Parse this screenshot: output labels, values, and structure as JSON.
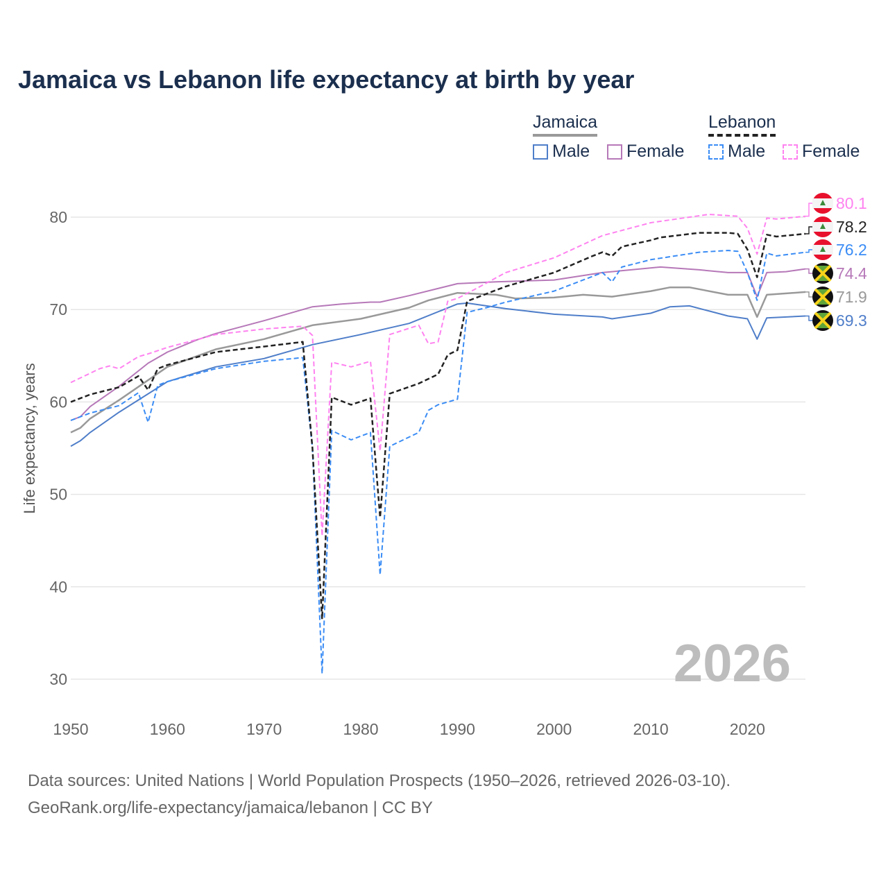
{
  "title": "Jamaica vs Lebanon life expectancy at birth by year",
  "legend": {
    "groups": [
      {
        "label": "Jamaica",
        "color": "#999999",
        "dashed": false
      },
      {
        "label": "Lebanon",
        "color": "#222222",
        "dashed": true
      }
    ],
    "items": [
      {
        "label": "Male",
        "color": "#4f7ec9",
        "dashed": false
      },
      {
        "label": "Female",
        "color": "#b678b8",
        "dashed": false
      },
      {
        "label": "Male",
        "color": "#3a8cf5",
        "dashed": true
      },
      {
        "label": "Female",
        "color": "#ff82f0",
        "dashed": true
      }
    ]
  },
  "watermark_year": "2026",
  "footer": {
    "line1": "Data sources: United Nations | World Population Prospects (1950–2026, retrieved 2026-03-10).",
    "line2": "GeoRank.org/life-expectancy/jamaica/lebanon | CC BY"
  },
  "chart_data": {
    "type": "line",
    "title": "Jamaica vs Lebanon life expectancy at birth by year",
    "xlabel": "",
    "ylabel": "Life expectancy, years",
    "xlim": [
      1950,
      2026
    ],
    "ylim": [
      27,
      85
    ],
    "xticks": [
      1950,
      1960,
      1970,
      1980,
      1990,
      2000,
      2010,
      2020
    ],
    "yticks": [
      30,
      40,
      50,
      60,
      70,
      80
    ],
    "grid": true,
    "series": [
      {
        "name": "Lebanon Female",
        "country": "lebanon",
        "color": "#ff82f0",
        "dashed": true,
        "width": 2,
        "end_label": "80.1",
        "points": [
          [
            1950,
            62.1
          ],
          [
            1953,
            63.6
          ],
          [
            1954,
            63.9
          ],
          [
            1955,
            63.6
          ],
          [
            1957,
            64.9
          ],
          [
            1958,
            65.2
          ],
          [
            1960,
            65.9
          ],
          [
            1965,
            67.3
          ],
          [
            1970,
            67.9
          ],
          [
            1974,
            68.2
          ],
          [
            1975,
            67.2
          ],
          [
            1976,
            45.5
          ],
          [
            1977,
            64.3
          ],
          [
            1979,
            63.8
          ],
          [
            1981,
            64.4
          ],
          [
            1982,
            54.7
          ],
          [
            1983,
            67.3
          ],
          [
            1986,
            68.3
          ],
          [
            1987,
            66.3
          ],
          [
            1988,
            66.5
          ],
          [
            1989,
            70.9
          ],
          [
            1990,
            71.2
          ],
          [
            1992,
            72.3
          ],
          [
            1995,
            74.0
          ],
          [
            2000,
            75.6
          ],
          [
            2005,
            78.0
          ],
          [
            2010,
            79.4
          ],
          [
            2016,
            80.3
          ],
          [
            2019,
            80.1
          ],
          [
            2020,
            78.8
          ],
          [
            2021,
            76.0
          ],
          [
            2022,
            79.9
          ],
          [
            2023,
            79.8
          ],
          [
            2026,
            80.1
          ]
        ]
      },
      {
        "name": "Lebanon",
        "country": "lebanon",
        "color": "#222222",
        "dashed": true,
        "width": 2.5,
        "end_label": "78.2",
        "points": [
          [
            1950,
            60.0
          ],
          [
            1952,
            60.8
          ],
          [
            1955,
            61.6
          ],
          [
            1957,
            62.8
          ],
          [
            1958,
            61.3
          ],
          [
            1959,
            63.6
          ],
          [
            1960,
            64.0
          ],
          [
            1965,
            65.4
          ],
          [
            1970,
            66.0
          ],
          [
            1974,
            66.5
          ],
          [
            1975,
            55.0
          ],
          [
            1976,
            36.5
          ],
          [
            1977,
            60.5
          ],
          [
            1979,
            59.7
          ],
          [
            1981,
            60.4
          ],
          [
            1982,
            47.5
          ],
          [
            1983,
            60.9
          ],
          [
            1986,
            62.0
          ],
          [
            1988,
            63.0
          ],
          [
            1989,
            65.1
          ],
          [
            1990,
            65.6
          ],
          [
            1991,
            70.9
          ],
          [
            1995,
            72.5
          ],
          [
            2000,
            74.0
          ],
          [
            2004,
            75.8
          ],
          [
            2005,
            76.2
          ],
          [
            2006,
            75.8
          ],
          [
            2007,
            76.8
          ],
          [
            2010,
            77.5
          ],
          [
            2011,
            77.8
          ],
          [
            2015,
            78.3
          ],
          [
            2018,
            78.3
          ],
          [
            2019,
            78.2
          ],
          [
            2020,
            76.5
          ],
          [
            2021,
            73.5
          ],
          [
            2022,
            78.1
          ],
          [
            2023,
            77.9
          ],
          [
            2026,
            78.2
          ]
        ]
      },
      {
        "name": "Lebanon Male",
        "country": "lebanon",
        "color": "#3a8cf5",
        "dashed": true,
        "width": 2,
        "end_label": "76.2",
        "points": [
          [
            1950,
            58.0
          ],
          [
            1952,
            58.8
          ],
          [
            1955,
            59.6
          ],
          [
            1957,
            61.0
          ],
          [
            1958,
            57.8
          ],
          [
            1959,
            61.8
          ],
          [
            1960,
            62.2
          ],
          [
            1965,
            63.6
          ],
          [
            1970,
            64.4
          ],
          [
            1974,
            64.8
          ],
          [
            1975,
            55.0
          ],
          [
            1976,
            30.6
          ],
          [
            1977,
            56.9
          ],
          [
            1979,
            55.9
          ],
          [
            1981,
            56.7
          ],
          [
            1982,
            41.3
          ],
          [
            1983,
            55.2
          ],
          [
            1986,
            56.7
          ],
          [
            1987,
            59.1
          ],
          [
            1988,
            59.7
          ],
          [
            1990,
            60.3
          ],
          [
            1991,
            69.7
          ],
          [
            1993,
            70.2
          ],
          [
            1995,
            70.8
          ],
          [
            2000,
            72.0
          ],
          [
            2005,
            74.0
          ],
          [
            2006,
            73.0
          ],
          [
            2007,
            74.6
          ],
          [
            2010,
            75.4
          ],
          [
            2015,
            76.2
          ],
          [
            2018,
            76.4
          ],
          [
            2019,
            76.3
          ],
          [
            2020,
            74.0
          ],
          [
            2021,
            71.0
          ],
          [
            2022,
            76.1
          ],
          [
            2023,
            75.8
          ],
          [
            2026,
            76.2
          ]
        ]
      },
      {
        "name": "Jamaica Female",
        "country": "jamaica",
        "color": "#b678b8",
        "dashed": false,
        "width": 2,
        "end_label": "74.4",
        "points": [
          [
            1950,
            58.0
          ],
          [
            1951,
            58.4
          ],
          [
            1952,
            59.5
          ],
          [
            1955,
            61.7
          ],
          [
            1958,
            64.2
          ],
          [
            1960,
            65.4
          ],
          [
            1963,
            66.7
          ],
          [
            1965,
            67.4
          ],
          [
            1970,
            68.8
          ],
          [
            1975,
            70.3
          ],
          [
            1978,
            70.6
          ],
          [
            1981,
            70.8
          ],
          [
            1982,
            70.8
          ],
          [
            1985,
            71.5
          ],
          [
            1990,
            72.8
          ],
          [
            1994,
            73.0
          ],
          [
            2000,
            73.2
          ],
          [
            2005,
            74.0
          ],
          [
            2011,
            74.6
          ],
          [
            2015,
            74.3
          ],
          [
            2018,
            74.0
          ],
          [
            2020,
            74.0
          ],
          [
            2021,
            71.4
          ],
          [
            2022,
            74.0
          ],
          [
            2024,
            74.1
          ],
          [
            2026,
            74.4
          ]
        ]
      },
      {
        "name": "Jamaica",
        "country": "jamaica",
        "color": "#999999",
        "dashed": false,
        "width": 2.5,
        "end_label": "71.9",
        "points": [
          [
            1950,
            56.7
          ],
          [
            1951,
            57.2
          ],
          [
            1952,
            58.2
          ],
          [
            1955,
            60.2
          ],
          [
            1960,
            63.8
          ],
          [
            1965,
            65.7
          ],
          [
            1970,
            66.8
          ],
          [
            1975,
            68.3
          ],
          [
            1980,
            69.0
          ],
          [
            1985,
            70.2
          ],
          [
            1987,
            71.0
          ],
          [
            1990,
            71.8
          ],
          [
            1994,
            71.6
          ],
          [
            1996,
            71.2
          ],
          [
            2000,
            71.3
          ],
          [
            2003,
            71.6
          ],
          [
            2006,
            71.4
          ],
          [
            2010,
            72.0
          ],
          [
            2012,
            72.4
          ],
          [
            2014,
            72.4
          ],
          [
            2018,
            71.6
          ],
          [
            2020,
            71.6
          ],
          [
            2021,
            69.2
          ],
          [
            2022,
            71.6
          ],
          [
            2026,
            71.9
          ]
        ]
      },
      {
        "name": "Jamaica Male",
        "country": "jamaica",
        "color": "#4f7ec9",
        "dashed": false,
        "width": 2,
        "end_label": "69.3",
        "points": [
          [
            1950,
            55.2
          ],
          [
            1951,
            55.8
          ],
          [
            1952,
            56.7
          ],
          [
            1955,
            58.9
          ],
          [
            1960,
            62.2
          ],
          [
            1965,
            63.8
          ],
          [
            1970,
            64.7
          ],
          [
            1975,
            66.2
          ],
          [
            1980,
            67.3
          ],
          [
            1985,
            68.5
          ],
          [
            1990,
            70.6
          ],
          [
            1991,
            70.7
          ],
          [
            1995,
            70.1
          ],
          [
            2000,
            69.5
          ],
          [
            2005,
            69.2
          ],
          [
            2006,
            69.0
          ],
          [
            2010,
            69.6
          ],
          [
            2012,
            70.3
          ],
          [
            2014,
            70.4
          ],
          [
            2018,
            69.3
          ],
          [
            2020,
            69.0
          ],
          [
            2021,
            66.8
          ],
          [
            2022,
            69.1
          ],
          [
            2026,
            69.3
          ]
        ]
      }
    ]
  }
}
